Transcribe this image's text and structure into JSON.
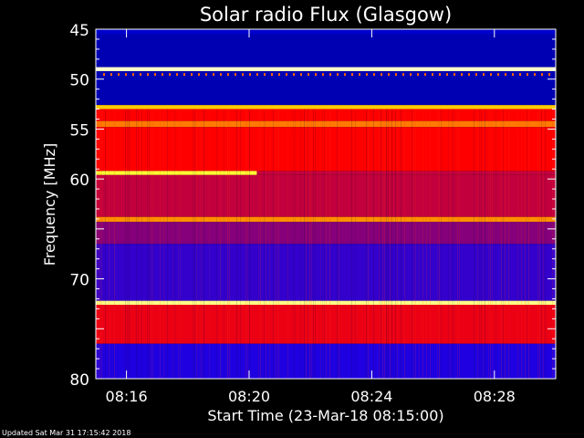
{
  "chart_data": {
    "type": "heatmap",
    "title": "Solar radio Flux (Glasgow)",
    "xlabel": "Start Time (23-Mar-18 08:15:00)",
    "ylabel": "Frequency [MHz]",
    "x_unit": "time",
    "xlim": [
      "08:15:00",
      "08:30:00"
    ],
    "x_ticks": [
      "08:16",
      "08:20",
      "08:24",
      "08:28"
    ],
    "ylim": [
      45,
      80
    ],
    "y_ticks": [
      45,
      50,
      55,
      60,
      65,
      70,
      75,
      80
    ],
    "y_tick_labels": [
      "45",
      "50",
      "55",
      "60",
      "",
      "70",
      "",
      "80"
    ],
    "y_inverted": true,
    "colormap": [
      "#000080",
      "#0000ff",
      "#ff0000",
      "#ffff00",
      "#ffffff"
    ],
    "bands": [
      {
        "f0": 45.0,
        "f1": 45.5,
        "level": 0.15
      },
      {
        "f0": 45.5,
        "f1": 48.8,
        "level": 0.1
      },
      {
        "f0": 48.8,
        "f1": 49.2,
        "level": 0.95
      },
      {
        "f0": 49.2,
        "f1": 52.6,
        "level": 0.1
      },
      {
        "f0": 52.6,
        "f1": 53.0,
        "level": 0.7
      },
      {
        "f0": 53.0,
        "f1": 54.2,
        "level": 0.5
      },
      {
        "f0": 54.2,
        "f1": 54.8,
        "level": 0.62
      },
      {
        "f0": 54.8,
        "f1": 59.2,
        "level": 0.5
      },
      {
        "f0": 59.2,
        "f1": 59.6,
        "level": 0.8,
        "t_end": "08:20:15"
      },
      {
        "f0": 59.6,
        "f1": 63.8,
        "level": 0.44
      },
      {
        "f0": 63.8,
        "f1": 64.3,
        "level": 0.64
      },
      {
        "f0": 64.3,
        "f1": 66.5,
        "level": 0.38
      },
      {
        "f0": 66.5,
        "f1": 72.2,
        "level": 0.3
      },
      {
        "f0": 72.2,
        "f1": 72.6,
        "level": 0.88
      },
      {
        "f0": 72.6,
        "f1": 76.5,
        "level": 0.48
      },
      {
        "f0": 76.5,
        "f1": 80.0,
        "level": 0.28
      }
    ],
    "footer": "Updated Sat Mar 31 17:15:42 2018"
  }
}
